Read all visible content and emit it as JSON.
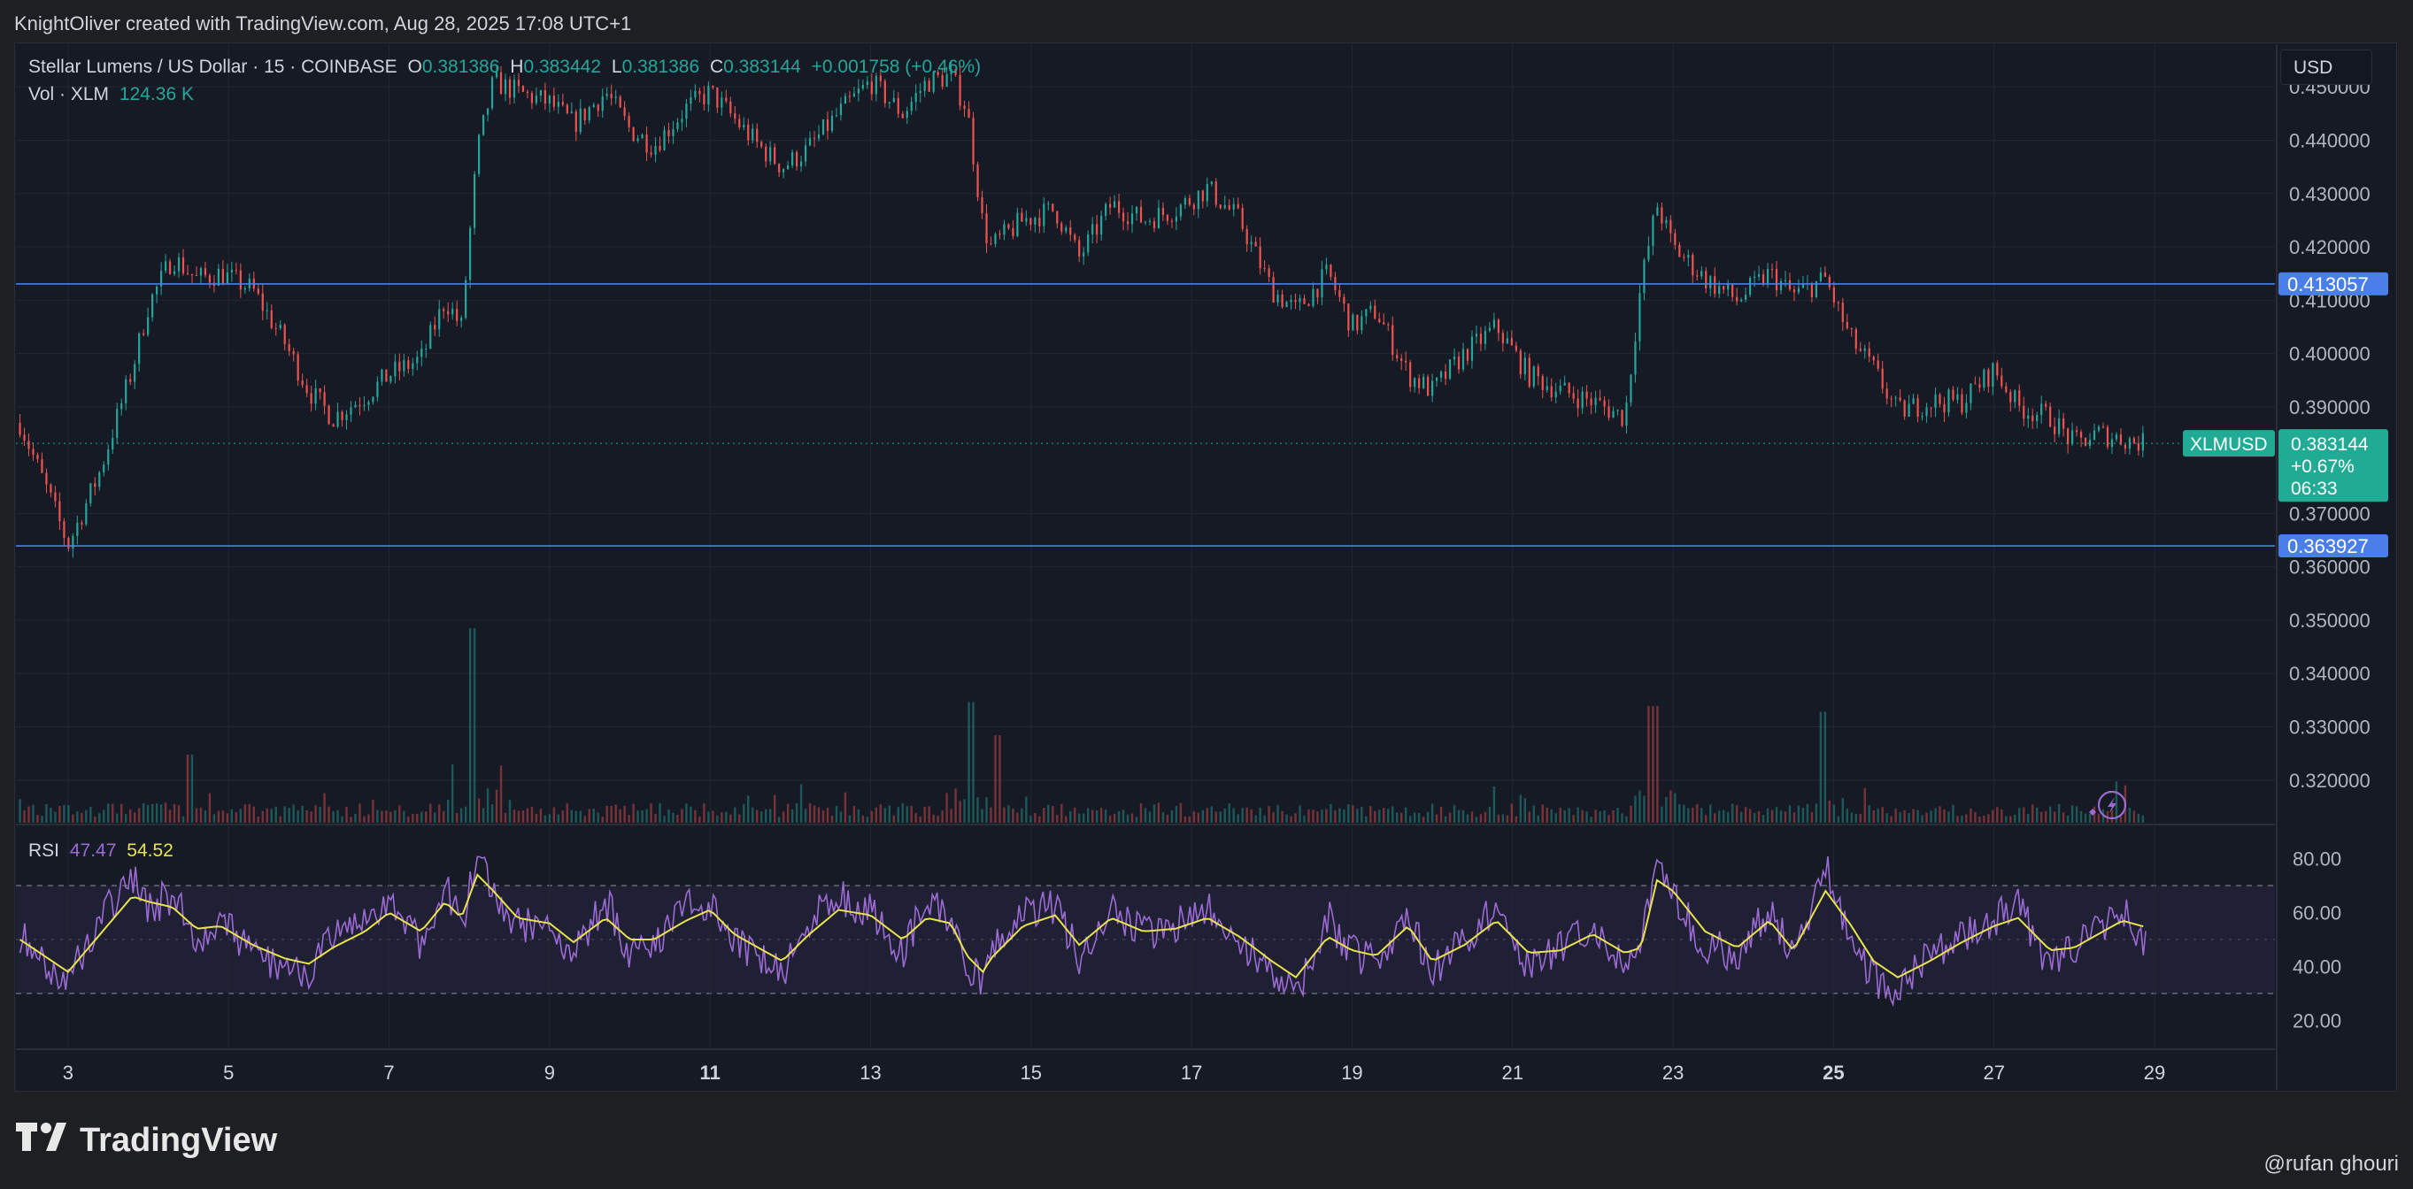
{
  "header": {
    "attribution": "KnightOliver created with TradingView.com, Aug 28, 2025 17:08 UTC+1"
  },
  "legend": {
    "symbol": "Stellar Lumens / US Dollar · 15 · COINBASE",
    "o_label": "O",
    "o_value": "0.381386",
    "h_label": "H",
    "h_value": "0.383442",
    "l_label": "L",
    "l_value": "0.381386",
    "c_label": "C",
    "c_value": "0.383144",
    "change": "+0.001758 (+0.46%)",
    "vol_label": "Vol · XLM",
    "vol_value": "124.36 K",
    "rsi_label": "RSI",
    "rsi_value": "47.47",
    "rsi_ma_value": "54.52"
  },
  "price_scale": {
    "currency": "USD",
    "ticks": [
      "0.450000",
      "0.440000",
      "0.430000",
      "0.420000",
      "0.410000",
      "0.400000",
      "0.390000",
      "0.370000",
      "0.360000",
      "0.350000",
      "0.340000",
      "0.330000",
      "0.320000"
    ],
    "markers": [
      {
        "label": "0.413057",
        "value": 0.413057,
        "color": "#4a7fe8"
      },
      {
        "label": "0.363927",
        "value": 0.363927,
        "color": "#4a7fe8"
      }
    ],
    "last_price": {
      "symbol": "XLMUSD",
      "price": "0.383144",
      "change": "+0.67%",
      "countdown": "06:33",
      "value": 0.383144,
      "color": "#22ab94"
    }
  },
  "rsi_scale": {
    "ticks": [
      "80.00",
      "60.00",
      "40.00",
      "20.00"
    ]
  },
  "time_axis": {
    "ticks": [
      {
        "label": "3",
        "bold": false
      },
      {
        "label": "5",
        "bold": false
      },
      {
        "label": "7",
        "bold": false
      },
      {
        "label": "9",
        "bold": false
      },
      {
        "label": "11",
        "bold": true
      },
      {
        "label": "13",
        "bold": false
      },
      {
        "label": "15",
        "bold": false
      },
      {
        "label": "17",
        "bold": false
      },
      {
        "label": "19",
        "bold": false
      },
      {
        "label": "21",
        "bold": false
      },
      {
        "label": "23",
        "bold": false
      },
      {
        "label": "25",
        "bold": true
      },
      {
        "label": "27",
        "bold": false
      },
      {
        "label": "29",
        "bold": false
      }
    ]
  },
  "footer": {
    "brand": "TradingView",
    "author": "@rufan ghouri"
  },
  "chart_data": [
    {
      "type": "line",
      "title": "Stellar Lumens / US Dollar · 15 · COINBASE",
      "x_unit": "day of month (Aug 2025)",
      "ylim": [
        0.312,
        0.458
      ],
      "xlim": [
        2.35,
        30.5
      ],
      "colors": {
        "up": "#26a69a",
        "down": "#ef5350"
      },
      "series": [
        {
          "x": [
            2.4,
            2.8,
            3.0,
            3.4,
            3.8,
            4.0,
            4.3,
            4.6,
            4.9,
            5.3,
            5.7,
            6.0,
            6.3,
            6.7,
            7.0,
            7.4,
            7.7,
            7.9,
            8.1,
            8.3,
            8.6,
            9.0,
            9.3,
            9.7,
            10.0,
            10.3,
            10.7,
            11.0,
            11.3,
            11.6,
            11.9,
            12.2,
            12.6,
            13.0,
            13.4,
            13.7,
            14.0,
            14.2,
            14.4,
            14.5,
            14.9,
            15.3,
            15.6,
            16.0,
            16.4,
            16.8,
            17.2,
            17.6,
            18.0,
            18.3,
            18.7,
            19.0,
            19.3,
            19.7,
            20.0,
            20.4,
            20.8,
            21.2,
            21.6,
            22.0,
            22.4,
            22.6,
            22.8,
            23.0,
            23.4,
            23.8,
            24.2,
            24.5,
            24.9,
            25.2,
            25.5,
            25.8,
            26.2,
            26.6,
            27.0,
            27.3,
            27.7,
            28.0,
            28.3,
            28.6,
            28.9
          ],
          "close": [
            0.387,
            0.372,
            0.364,
            0.378,
            0.397,
            0.409,
            0.418,
            0.414,
            0.415,
            0.412,
            0.402,
            0.393,
            0.388,
            0.392,
            0.396,
            0.399,
            0.41,
            0.405,
            0.438,
            0.451,
            0.449,
            0.447,
            0.443,
            0.449,
            0.442,
            0.439,
            0.446,
            0.449,
            0.444,
            0.439,
            0.435,
            0.438,
            0.445,
            0.451,
            0.445,
            0.451,
            0.452,
            0.446,
            0.424,
            0.42,
            0.425,
            0.427,
            0.418,
            0.428,
            0.425,
            0.427,
            0.431,
            0.425,
            0.412,
            0.408,
            0.415,
            0.405,
            0.408,
            0.396,
            0.393,
            0.4,
            0.405,
            0.396,
            0.393,
            0.391,
            0.388,
            0.413,
            0.428,
            0.42,
            0.414,
            0.41,
            0.415,
            0.411,
            0.414,
            0.403,
            0.397,
            0.389,
            0.391,
            0.391,
            0.397,
            0.39,
            0.388,
            0.383,
            0.385,
            0.384,
            0.383
          ]
        }
      ]
    },
    {
      "type": "bar",
      "title": "Vol · XLM",
      "x_unit": "day of month (Aug 2025)",
      "note": "volume profile shape; spikes near 8, 14.3, 22.8, 24.8",
      "spikes": [
        {
          "x": 8.05,
          "rel": 1.0
        },
        {
          "x": 14.25,
          "rel": 0.62
        },
        {
          "x": 22.75,
          "rel": 0.6
        },
        {
          "x": 24.85,
          "rel": 0.57
        },
        {
          "x": 4.5,
          "rel": 0.35
        },
        {
          "x": 14.6,
          "rel": 0.45
        }
      ]
    },
    {
      "type": "line",
      "title": "RSI",
      "ylim": [
        10,
        90
      ],
      "bands": [
        30,
        70
      ],
      "series": [
        {
          "name": "RSI",
          "color": "#9b6bd3",
          "x": [
            2.4,
            2.8,
            3.0,
            3.4,
            3.8,
            4.0,
            4.3,
            4.6,
            4.9,
            5.3,
            5.7,
            6.0,
            6.3,
            6.7,
            7.0,
            7.4,
            7.7,
            7.9,
            8.1,
            8.3,
            8.6,
            9.0,
            9.3,
            9.7,
            10.0,
            10.3,
            10.7,
            11.0,
            11.3,
            11.6,
            11.9,
            12.2,
            12.6,
            13.0,
            13.4,
            13.7,
            14.0,
            14.2,
            14.4,
            14.5,
            14.9,
            15.3,
            15.6,
            16.0,
            16.4,
            16.8,
            17.2,
            17.6,
            18.0,
            18.3,
            18.7,
            19.0,
            19.3,
            19.7,
            20.0,
            20.4,
            20.8,
            21.2,
            21.6,
            22.0,
            22.4,
            22.6,
            22.8,
            23.0,
            23.4,
            23.8,
            24.2,
            24.5,
            24.9,
            25.2,
            25.5,
            25.8,
            26.2,
            26.6,
            27.0,
            27.3,
            27.7,
            28.0,
            28.3,
            28.6,
            28.9
          ],
          "values": [
            52,
            38,
            35,
            58,
            72,
            62,
            66,
            50,
            57,
            44,
            40,
            39,
            50,
            56,
            65,
            48,
            72,
            54,
            80,
            66,
            55,
            57,
            44,
            64,
            46,
            49,
            62,
            64,
            48,
            44,
            38,
            56,
            66,
            60,
            46,
            64,
            57,
            40,
            34,
            45,
            60,
            62,
            44,
            63,
            52,
            55,
            61,
            48,
            38,
            30,
            58,
            45,
            42,
            60,
            37,
            50,
            62,
            40,
            47,
            55,
            42,
            48,
            80,
            66,
            48,
            44,
            62,
            42,
            78,
            52,
            36,
            30,
            44,
            52,
            58,
            62,
            40,
            46,
            54,
            60,
            47
          ],
          "last": 47.47
        },
        {
          "name": "RSI-based MA",
          "color": "#e8e34c",
          "x": [
            2.4,
            2.8,
            3.0,
            3.4,
            3.8,
            4.0,
            4.3,
            4.6,
            4.9,
            5.3,
            5.7,
            6.0,
            6.3,
            6.7,
            7.0,
            7.4,
            7.7,
            7.9,
            8.1,
            8.3,
            8.6,
            9.0,
            9.3,
            9.7,
            10.0,
            10.3,
            10.7,
            11.0,
            11.3,
            11.6,
            11.9,
            12.2,
            12.6,
            13.0,
            13.4,
            13.7,
            14.0,
            14.2,
            14.4,
            14.5,
            14.9,
            15.3,
            15.6,
            16.0,
            16.4,
            16.8,
            17.2,
            17.6,
            18.0,
            18.3,
            18.7,
            19.0,
            19.3,
            19.7,
            20.0,
            20.4,
            20.8,
            21.2,
            21.6,
            22.0,
            22.4,
            22.6,
            22.8,
            23.0,
            23.4,
            23.8,
            24.2,
            24.5,
            24.9,
            25.2,
            25.5,
            25.8,
            26.2,
            26.6,
            27.0,
            27.3,
            27.7,
            28.0,
            28.3,
            28.6,
            28.9
          ],
          "values": [
            50,
            42,
            38,
            52,
            66,
            64,
            62,
            54,
            55,
            48,
            43,
            41,
            47,
            53,
            60,
            53,
            64,
            58,
            74,
            68,
            58,
            56,
            49,
            58,
            50,
            50,
            57,
            61,
            52,
            47,
            42,
            51,
            61,
            59,
            50,
            58,
            56,
            44,
            38,
            43,
            55,
            59,
            48,
            58,
            53,
            54,
            58,
            51,
            42,
            36,
            51,
            46,
            44,
            55,
            42,
            48,
            57,
            45,
            46,
            52,
            45,
            47,
            72,
            68,
            53,
            47,
            57,
            46,
            68,
            56,
            42,
            36,
            42,
            49,
            55,
            58,
            46,
            47,
            52,
            57,
            54.52
          ],
          "last": 54.52
        }
      ]
    }
  ]
}
